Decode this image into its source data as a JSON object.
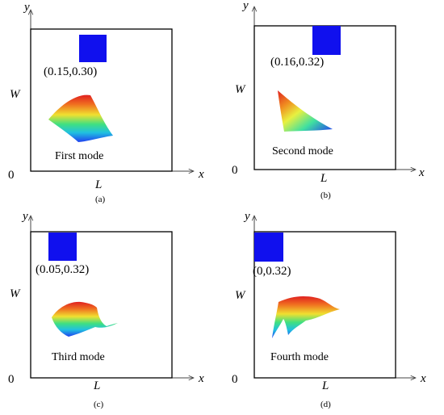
{
  "panels": [
    {
      "caption": "(a)",
      "coord_label": "(0.15,0.30)",
      "mode_label": "First mode",
      "axis_x": "x",
      "axis_y": "y",
      "length": "L",
      "width": "W",
      "origin": "0",
      "patch_color": "#1010ee"
    },
    {
      "caption": "(b)",
      "coord_label": "(0.16,0.32)",
      "mode_label": "Second mode",
      "axis_x": "x",
      "axis_y": "y",
      "length": "L",
      "width": "W",
      "origin": "0",
      "patch_color": "#1010ee"
    },
    {
      "caption": "(c)",
      "coord_label": "(0.05,0.32)",
      "mode_label": "Third mode",
      "axis_x": "x",
      "axis_y": "y",
      "length": "L",
      "width": "W",
      "origin": "0",
      "patch_color": "#1010ee"
    },
    {
      "caption": "(d)",
      "coord_label": "(0,0.32)",
      "mode_label": "Fourth mode",
      "axis_x": "x",
      "axis_y": "y",
      "length": "L",
      "width": "W",
      "origin": "0",
      "patch_color": "#1010ee"
    }
  ],
  "colormap": [
    "#e02020",
    "#f07020",
    "#f0e030",
    "#40e080",
    "#20c0e0",
    "#2040f0"
  ]
}
